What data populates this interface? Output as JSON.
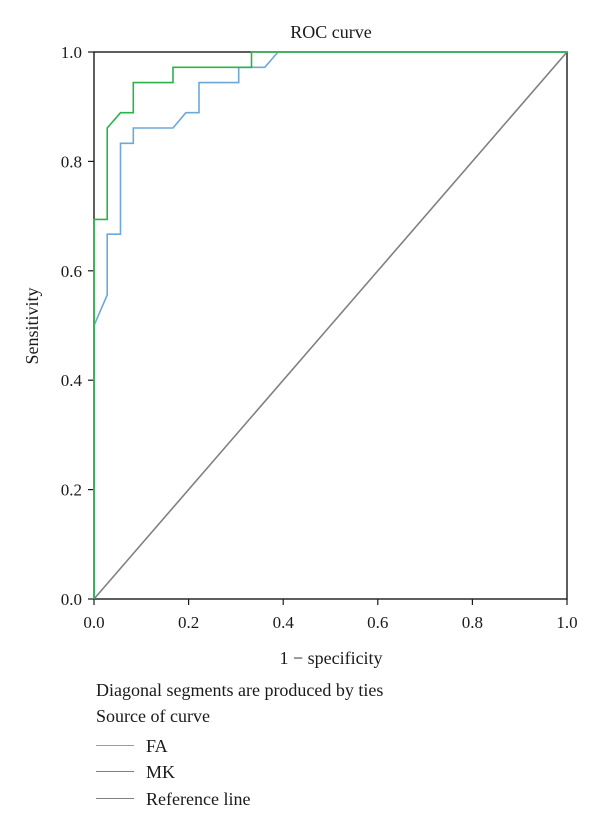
{
  "chart_data": {
    "type": "line",
    "title": "ROC curve",
    "xlabel": "1 − specificity",
    "ylabel": "Sensitivity",
    "xlim": [
      0,
      1
    ],
    "ylim": [
      0,
      1
    ],
    "xticks": [
      "0.0",
      "0.2",
      "0.4",
      "0.6",
      "0.8",
      "1.0"
    ],
    "yticks": [
      "0.0",
      "0.2",
      "0.4",
      "0.6",
      "0.8",
      "1.0"
    ],
    "grid": false,
    "legend_position": "bottom",
    "series": [
      {
        "name": "FA",
        "color": "#6ea8d8",
        "points": [
          [
            0,
            0
          ],
          [
            0,
            0.5
          ],
          [
            0.028,
            0.556
          ],
          [
            0.028,
            0.667
          ],
          [
            0.056,
            0.667
          ],
          [
            0.056,
            0.833
          ],
          [
            0.083,
            0.833
          ],
          [
            0.083,
            0.861
          ],
          [
            0.167,
            0.861
          ],
          [
            0.194,
            0.889
          ],
          [
            0.222,
            0.889
          ],
          [
            0.222,
            0.944
          ],
          [
            0.306,
            0.944
          ],
          [
            0.306,
            0.972
          ],
          [
            0.361,
            0.972
          ],
          [
            0.389,
            1.0
          ],
          [
            1.0,
            1.0
          ]
        ]
      },
      {
        "name": "MK",
        "color": "#2bb34a",
        "points": [
          [
            0,
            0
          ],
          [
            0,
            0.694
          ],
          [
            0.028,
            0.694
          ],
          [
            0.028,
            0.861
          ],
          [
            0.056,
            0.889
          ],
          [
            0.083,
            0.889
          ],
          [
            0.083,
            0.944
          ],
          [
            0.167,
            0.944
          ],
          [
            0.167,
            0.972
          ],
          [
            0.333,
            0.972
          ],
          [
            0.333,
            1.0
          ],
          [
            1.0,
            1.0
          ]
        ]
      },
      {
        "name": "Reference line",
        "color": "#808080",
        "points": [
          [
            0,
            0
          ],
          [
            1,
            1
          ]
        ]
      }
    ],
    "reference_series": "",
    "box_color": "#1a1a1a"
  },
  "notes": {
    "ties": "Diagonal segments are produced by ties",
    "source": "Source of curve"
  },
  "legend": [
    {
      "label": "FA",
      "color": "#6ea8d8"
    },
    {
      "label": "MK",
      "color": "#2bb34a"
    },
    {
      "label": "Reference line",
      "color": "#808080"
    }
  ]
}
